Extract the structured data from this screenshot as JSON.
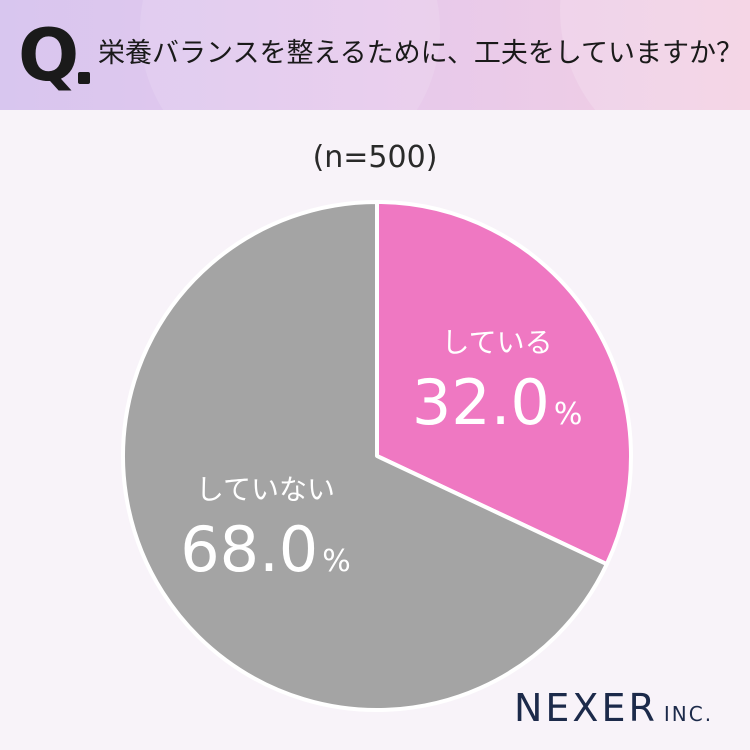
{
  "header": {
    "q_mark": "Q",
    "question": "栄養バランスを整えるために、工夫をしていますか？"
  },
  "sample_label": "(n=500)",
  "chart_data": {
    "type": "pie",
    "title": "",
    "slices": [
      {
        "label": "している",
        "value": 32.0,
        "color": "#ef78c2",
        "value_text": "32.0",
        "unit": "%"
      },
      {
        "label": "していない",
        "value": 68.0,
        "color": "#a4a4a4",
        "value_text": "68.0",
        "unit": "%"
      }
    ],
    "start": "top",
    "direction": "clockwise"
  },
  "logo": {
    "main": "NEXER",
    "sub": "INC."
  }
}
